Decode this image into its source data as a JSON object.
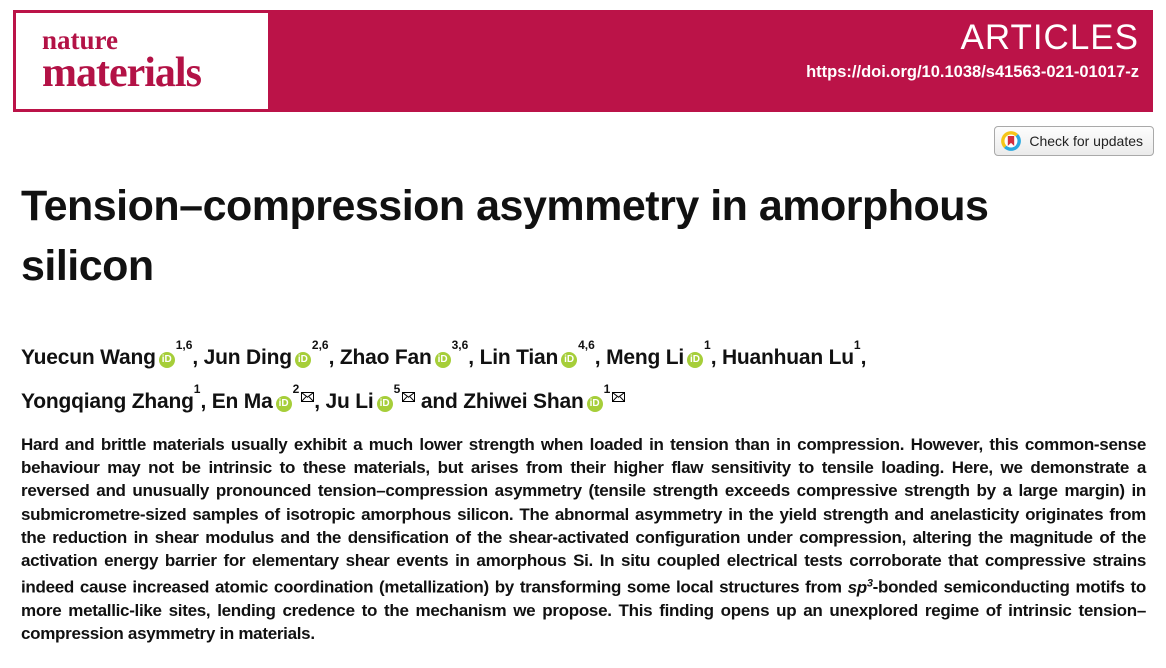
{
  "masthead": {
    "journal_name_line1": "nature",
    "journal_name_line2": "materials",
    "section_label": "ARTICLES",
    "doi": "https://doi.org/10.1038/s41563-021-01017-z"
  },
  "update_badge": {
    "label": "Check for updates"
  },
  "article": {
    "title_line1": "Tension–compression asymmetry in amorphous",
    "title_line2": "silicon"
  },
  "authors": {
    "lines": [
      [
        {
          "name": "Yuecun Wang",
          "orcid": true,
          "sup": "1,6",
          "mail": false,
          "sep": ", "
        },
        {
          "name": "Jun Ding",
          "orcid": true,
          "sup": "2,6",
          "mail": false,
          "sep": ", "
        },
        {
          "name": "Zhao Fan",
          "orcid": true,
          "sup": "3,6",
          "mail": false,
          "sep": ", "
        },
        {
          "name": "Lin Tian",
          "orcid": true,
          "sup": "4,6",
          "mail": false,
          "sep": ", "
        },
        {
          "name": "Meng Li",
          "orcid": true,
          "sup": "1",
          "mail": false,
          "sep": ", "
        },
        {
          "name": "Huanhuan Lu",
          "orcid": false,
          "sup": "1",
          "mail": false,
          "sep": ","
        }
      ],
      [
        {
          "name": "Yongqiang Zhang",
          "orcid": false,
          "sup": "1",
          "mail": false,
          "sep": ", "
        },
        {
          "name": "En Ma",
          "orcid": true,
          "sup": "2",
          "mail": true,
          "sep": ", "
        },
        {
          "name": "Ju Li",
          "orcid": true,
          "sup": "5",
          "mail": true,
          "sep": " and "
        },
        {
          "name": "Zhiwei Shan",
          "orcid": true,
          "sup": "1",
          "mail": true,
          "sep": ""
        }
      ]
    ],
    "orcid_icon_text": "iD"
  },
  "abstract": {
    "part1": "Hard and brittle materials usually exhibit a much lower strength when loaded in tension than in compression. However, this common-sense behaviour may not be intrinsic to these materials, but arises from their higher flaw sensitivity to tensile loading. Here, we demonstrate a reversed and unusually pronounced tension–compression asymmetry (tensile strength exceeds compressive strength by a large margin) in submicrometre-sized samples of isotropic amorphous silicon. The abnormal asymmetry in the yield strength and anelasticity originates from the reduction in shear modulus and the densification of the shear-activated configuration under compression, altering the magnitude of the activation energy barrier for elementary shear events in amorphous Si. In situ coupled electrical tests corroborate that compressive strains indeed cause increased atomic coordination (metallization) by transforming some local structures from ",
    "sp_word": "sp",
    "sp_sup": "3",
    "part2": "-bonded semiconducting motifs to more metallic-like sites, lending credence to the mechanism we propose. This finding opens up an unexplored regime of intrinsic tension–compression asymmetry in materials."
  },
  "colors": {
    "brand_red": "#BB1348",
    "orcid_green": "#A6CE39",
    "crossmark_yellow": "#F5C518",
    "crossmark_blue": "#29A8E0",
    "crossmark_red": "#D22E3E"
  }
}
